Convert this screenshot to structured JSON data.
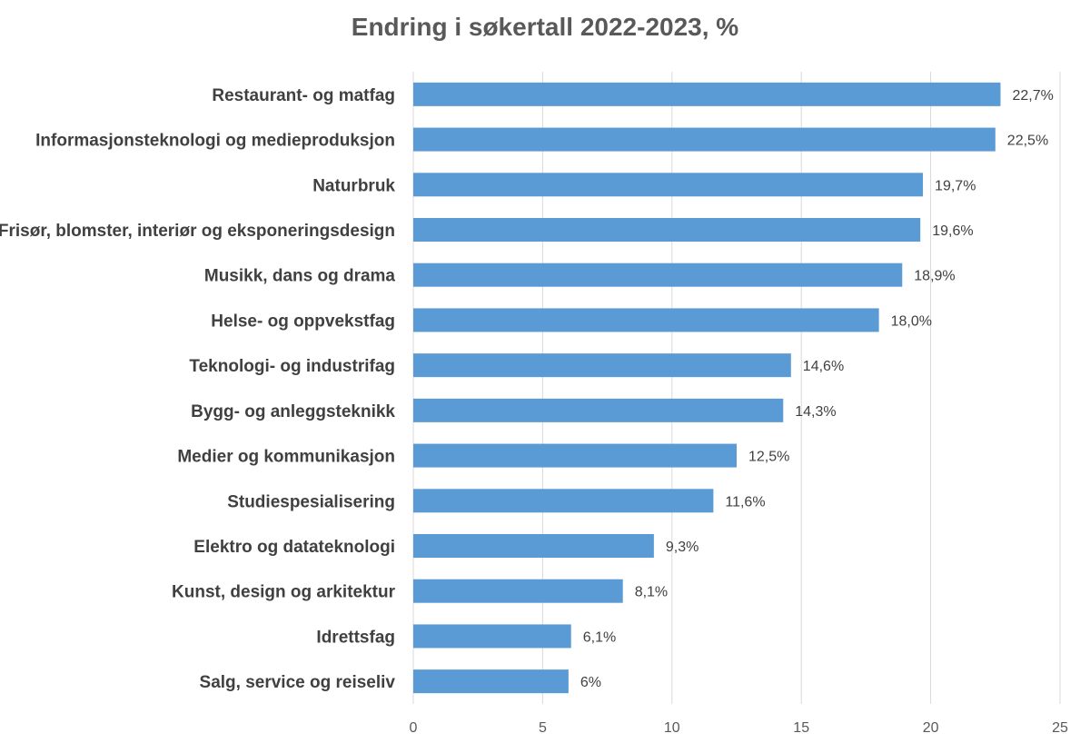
{
  "chart_data": {
    "type": "bar",
    "orientation": "horizontal",
    "title": "Endring i søkertall 2022-2023, %",
    "xlabel": "",
    "ylabel": "",
    "categories": [
      "Restaurant- og matfag",
      "Informasjonsteknologi og medieproduksjon",
      "Naturbruk",
      "Frisør, blomster, interiør og eksponeringsdesign",
      "Musikk, dans og drama",
      "Helse- og oppvekstfag",
      "Teknologi- og industrifag",
      "Bygg- og anleggsteknikk",
      "Medier og kommunikasjon",
      "Studiespesialisering",
      "Elektro og datateknologi",
      "Kunst, design og arkitektur",
      "Idrettsfag",
      "Salg, service og reiseliv"
    ],
    "values": [
      22.7,
      22.5,
      19.7,
      19.6,
      18.9,
      18.0,
      14.6,
      14.3,
      12.5,
      11.6,
      9.3,
      8.1,
      6.1,
      6.0
    ],
    "data_labels": [
      "22,7%",
      "22,5%",
      "19,7%",
      "19,6%",
      "18,9%",
      "18,0%",
      "14,6%",
      "14,3%",
      "12,5%",
      "11,6%",
      "9,3%",
      "8,1%",
      "6,1%",
      "6%"
    ],
    "xlim": [
      0,
      25
    ],
    "x_ticks": [
      "0",
      "5",
      "10",
      "15",
      "20",
      "25"
    ],
    "grid": true,
    "legend": "none",
    "bar_color": "#5b9bd5",
    "grid_color": "#d9d9d9"
  }
}
